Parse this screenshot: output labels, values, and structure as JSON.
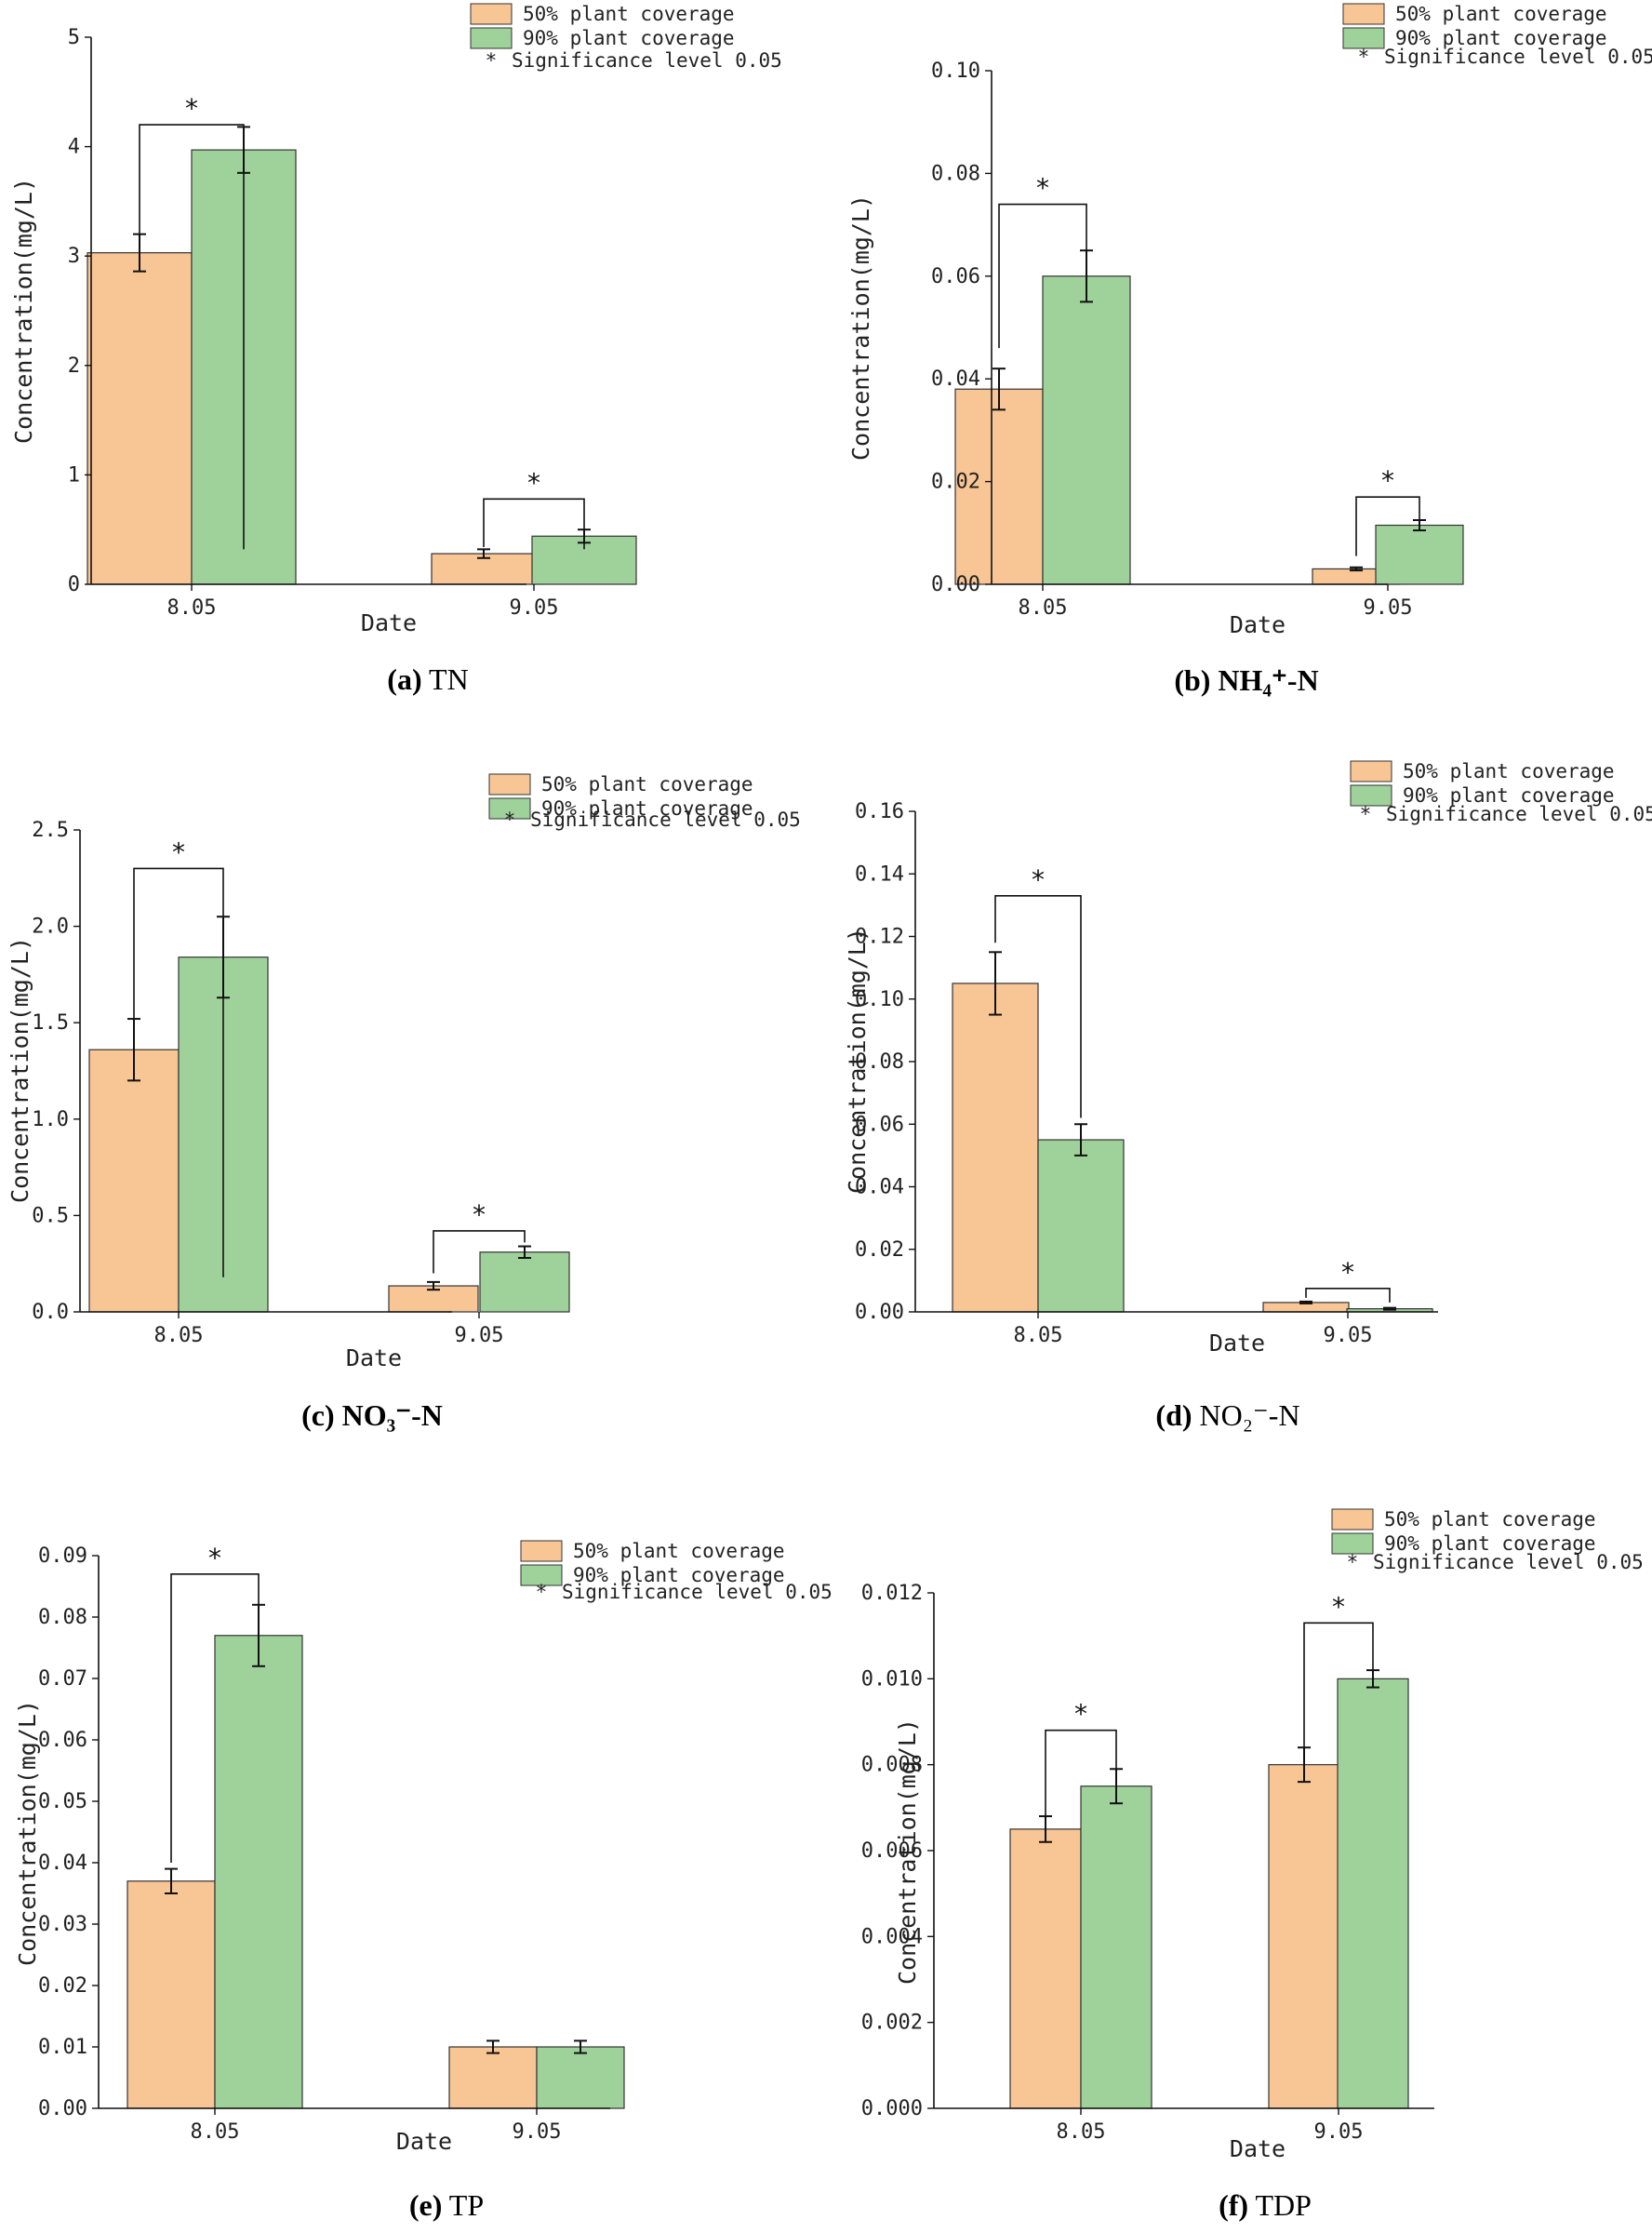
{
  "colors": {
    "c50": "#f8c595",
    "c90": "#9fd29a",
    "stroke": "#333333"
  },
  "legend": {
    "s50": "50% plant coverage",
    "s90": "90% plant coverage",
    "sig_marker": "*",
    "sig": "Significance level 0.05"
  },
  "chart_data": [
    {
      "id": "a",
      "type": "bar",
      "caption_letter": "(a)",
      "caption_text": "TN",
      "xlabel": "Date",
      "ylabel": "Concentration(mg/L)",
      "categories": [
        "8.05",
        "9.05"
      ],
      "ylim": [
        0,
        5
      ],
      "yticks": [
        0,
        1,
        2,
        3,
        4,
        5
      ],
      "ytick_labels": [
        "0",
        "1",
        "2",
        "3",
        "4",
        "5"
      ],
      "series": [
        {
          "name": "50% plant coverage",
          "values": [
            3.03,
            0.28
          ],
          "errors": [
            0.17,
            0.04
          ]
        },
        {
          "name": "90% plant coverage",
          "values": [
            3.97,
            0.44
          ],
          "errors": [
            0.21,
            0.06
          ]
        }
      ],
      "significance": [
        {
          "label": "*",
          "low": [
            3.2,
            0.32
          ],
          "high": [
            4.2,
            0.52
          ]
        },
        {
          "label": "*",
          "low": [
            0.34,
            0.32
          ],
          "high": [
            0.78,
            0.78
          ]
        }
      ]
    },
    {
      "id": "b",
      "type": "bar",
      "caption_letter": "(b)",
      "caption_text": "NH₄⁺-N",
      "xlabel": "Date",
      "ylabel": "Concentration(mg/L)",
      "categories": [
        "8.05",
        "9.05"
      ],
      "ylim": [
        0,
        0.1
      ],
      "yticks": [
        0,
        0.02,
        0.04,
        0.06,
        0.08,
        0.1
      ],
      "ytick_labels": [
        "0.00",
        "0.02",
        "0.04",
        "0.06",
        "0.08",
        "0.10"
      ],
      "series": [
        {
          "name": "50% plant coverage",
          "values": [
            0.038,
            0.003
          ],
          "errors": [
            0.004,
            0.0003
          ]
        },
        {
          "name": "90% plant coverage",
          "values": [
            0.06,
            0.0115
          ],
          "errors": [
            0.005,
            0.001
          ]
        }
      ],
      "significance": [
        {
          "label": "*",
          "low": [
            0.046,
            0.065
          ],
          "high": [
            0.074,
            0.065
          ]
        },
        {
          "label": "*",
          "low": [
            0.0055,
            0.0125
          ],
          "high": [
            0.017,
            0.017
          ]
        }
      ]
    },
    {
      "id": "c",
      "type": "bar",
      "caption_letter": "(c)",
      "caption_text": "NO₃⁻-N",
      "xlabel": "Date",
      "ylabel": "Concentration(mg/L)",
      "categories": [
        "8.05",
        "9.05"
      ],
      "ylim": [
        0,
        2.5
      ],
      "yticks": [
        0,
        0.5,
        1.0,
        1.5,
        2.0,
        2.5
      ],
      "ytick_labels": [
        "0.0",
        "0.5",
        "1.0",
        "1.5",
        "2.0",
        "2.5"
      ],
      "series": [
        {
          "name": "50% plant coverage",
          "values": [
            1.36,
            0.135
          ],
          "errors": [
            0.16,
            0.02
          ]
        },
        {
          "name": "90% plant coverage",
          "values": [
            1.84,
            0.31
          ],
          "errors": [
            0.21,
            0.03
          ]
        }
      ],
      "significance": [
        {
          "label": "*",
          "low": [
            1.52,
            0.18
          ],
          "high": [
            2.3,
            0.34
          ]
        },
        {
          "label": "*",
          "low": [
            0.2,
            0.36
          ],
          "high": [
            0.42,
            0.42
          ]
        }
      ]
    },
    {
      "id": "d",
      "type": "bar",
      "caption_letter": "(d)",
      "caption_text": "NO₂⁻-N",
      "xlabel": "Date",
      "ylabel": "Concentration(mg/L)",
      "categories": [
        "8.05",
        "9.05"
      ],
      "ylim": [
        0,
        0.16
      ],
      "yticks": [
        0,
        0.02,
        0.04,
        0.06,
        0.08,
        0.1,
        0.12,
        0.14,
        0.16
      ],
      "ytick_labels": [
        "0.00",
        "0.02",
        "0.04",
        "0.06",
        "0.08",
        "0.10",
        "0.12",
        "0.14",
        "0.16"
      ],
      "series": [
        {
          "name": "50% plant coverage",
          "values": [
            0.105,
            0.003
          ],
          "errors": [
            0.01,
            0.0003
          ]
        },
        {
          "name": "90% plant coverage",
          "values": [
            0.055,
            0.001
          ],
          "errors": [
            0.005,
            0.0003
          ]
        }
      ],
      "significance": [
        {
          "label": "*",
          "low": [
            0.118,
            0.062
          ],
          "high": [
            0.133,
            0.133
          ]
        },
        {
          "label": "*",
          "low": [
            0.0045,
            0.003
          ],
          "high": [
            0.0075,
            0.0075
          ]
        }
      ]
    },
    {
      "id": "e",
      "type": "bar",
      "caption_letter": "(e)",
      "caption_text": "TP",
      "xlabel": "Date",
      "ylabel": "Concentration(mg/L)",
      "categories": [
        "8.05",
        "9.05"
      ],
      "ylim": [
        0,
        0.09
      ],
      "yticks": [
        0,
        0.01,
        0.02,
        0.03,
        0.04,
        0.05,
        0.06,
        0.07,
        0.08,
        0.09
      ],
      "ytick_labels": [
        "0.00",
        "0.01",
        "0.02",
        "0.03",
        "0.04",
        "0.05",
        "0.06",
        "0.07",
        "0.08",
        "0.09"
      ],
      "series": [
        {
          "name": "50% plant coverage",
          "values": [
            0.037,
            0.01
          ],
          "errors": [
            0.002,
            0.001
          ]
        },
        {
          "name": "90% plant coverage",
          "values": [
            0.077,
            0.01
          ],
          "errors": [
            0.005,
            0.001
          ]
        }
      ],
      "significance": [
        {
          "label": "*",
          "low": [
            0.04,
            0.082
          ],
          "high": [
            0.087,
            0.087
          ]
        }
      ]
    },
    {
      "id": "f",
      "type": "bar",
      "caption_letter": "(f)",
      "caption_text": "TDP",
      "xlabel": "Date",
      "ylabel": "Concentration(mg/L)",
      "categories": [
        "8.05",
        "9.05"
      ],
      "ylim": [
        0,
        0.012
      ],
      "yticks": [
        0,
        0.002,
        0.004,
        0.006,
        0.008,
        0.01,
        0.012
      ],
      "ytick_labels": [
        "0.000",
        "0.002",
        "0.004",
        "0.006",
        "0.008",
        "0.010",
        "0.012"
      ],
      "series": [
        {
          "name": "50% plant coverage",
          "values": [
            0.0065,
            0.008
          ],
          "errors": [
            0.0003,
            0.0004
          ]
        },
        {
          "name": "90% plant coverage",
          "values": [
            0.0075,
            0.01
          ],
          "errors": [
            0.0004,
            0.0002
          ]
        }
      ],
      "significance": [
        {
          "label": "*",
          "low": [
            0.0068,
            0.0079
          ],
          "high": [
            0.0088,
            0.0088
          ]
        },
        {
          "label": "*",
          "low": [
            0.0084,
            0.0102
          ],
          "high": [
            0.0113,
            0.0113
          ]
        }
      ]
    }
  ]
}
